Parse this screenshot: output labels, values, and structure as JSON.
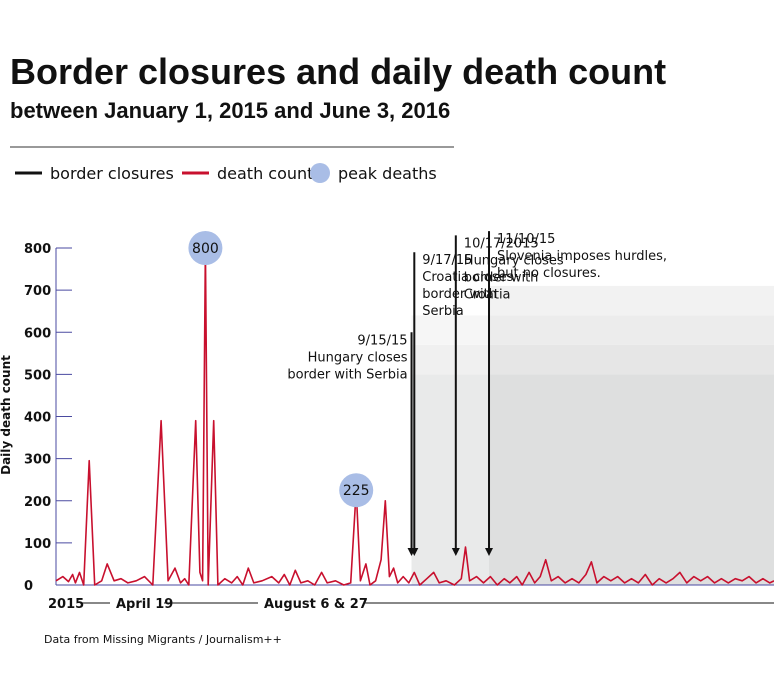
{
  "title": "Border closures and daily death count",
  "subtitle": "between January 1, 2015 and June 3, 2016",
  "legend": [
    {
      "label": "border closures",
      "color": "#111111",
      "kind": "line"
    },
    {
      "label": "death count",
      "color": "#c8102e",
      "kind": "line"
    },
    {
      "label": "peak deaths",
      "color": "#a9bde6",
      "kind": "dot"
    }
  ],
  "source": "Data from Missing Migrants / Journalism++",
  "chart_data": {
    "type": "line",
    "ylabel": "Daily death count",
    "ylim": [
      0,
      800
    ],
    "yticks": [
      0,
      100,
      200,
      300,
      400,
      500,
      600,
      700,
      800
    ],
    "xrange": [
      "2015-01-01",
      "2016-06-03"
    ],
    "xlabels": [
      {
        "text": "2015",
        "date": "2015-01-01"
      },
      {
        "text": "April 19",
        "date": "2015-04-19"
      },
      {
        "text": "August 6 & 27",
        "date": "2015-08-17"
      }
    ],
    "series": [
      {
        "name": "death count",
        "color": "#c8102e",
        "points": [
          [
            "2015-01-01",
            10
          ],
          [
            "2015-01-06",
            20
          ],
          [
            "2015-01-10",
            8
          ],
          [
            "2015-01-13",
            25
          ],
          [
            "2015-01-15",
            5
          ],
          [
            "2015-01-18",
            30
          ],
          [
            "2015-01-21",
            0
          ],
          [
            "2015-01-25",
            295
          ],
          [
            "2015-01-29",
            0
          ],
          [
            "2015-02-03",
            10
          ],
          [
            "2015-02-07",
            50
          ],
          [
            "2015-02-12",
            10
          ],
          [
            "2015-02-17",
            15
          ],
          [
            "2015-02-22",
            5
          ],
          [
            "2015-02-28",
            10
          ],
          [
            "2015-03-06",
            20
          ],
          [
            "2015-03-12",
            0
          ],
          [
            "2015-03-18",
            390
          ],
          [
            "2015-03-23",
            10
          ],
          [
            "2015-03-28",
            40
          ],
          [
            "2015-04-01",
            5
          ],
          [
            "2015-04-04",
            15
          ],
          [
            "2015-04-07",
            0
          ],
          [
            "2015-04-12",
            390
          ],
          [
            "2015-04-15",
            30
          ],
          [
            "2015-04-17",
            10
          ],
          [
            "2015-04-19",
            800
          ],
          [
            "2015-04-21",
            0
          ],
          [
            "2015-04-25",
            390
          ],
          [
            "2015-04-28",
            0
          ],
          [
            "2015-05-03",
            15
          ],
          [
            "2015-05-08",
            5
          ],
          [
            "2015-05-12",
            20
          ],
          [
            "2015-05-16",
            0
          ],
          [
            "2015-05-20",
            40
          ],
          [
            "2015-05-24",
            5
          ],
          [
            "2015-05-30",
            10
          ],
          [
            "2015-06-06",
            20
          ],
          [
            "2015-06-11",
            5
          ],
          [
            "2015-06-15",
            25
          ],
          [
            "2015-06-19",
            0
          ],
          [
            "2015-06-23",
            35
          ],
          [
            "2015-06-27",
            5
          ],
          [
            "2015-07-02",
            10
          ],
          [
            "2015-07-07",
            0
          ],
          [
            "2015-07-12",
            30
          ],
          [
            "2015-07-16",
            5
          ],
          [
            "2015-07-22",
            10
          ],
          [
            "2015-07-28",
            0
          ],
          [
            "2015-08-02",
            5
          ],
          [
            "2015-08-06",
            225
          ],
          [
            "2015-08-09",
            10
          ],
          [
            "2015-08-13",
            50
          ],
          [
            "2015-08-16",
            0
          ],
          [
            "2015-08-20",
            10
          ],
          [
            "2015-08-24",
            60
          ],
          [
            "2015-08-27",
            200
          ],
          [
            "2015-08-30",
            20
          ],
          [
            "2015-09-02",
            40
          ],
          [
            "2015-09-05",
            5
          ],
          [
            "2015-09-09",
            20
          ],
          [
            "2015-09-13",
            5
          ],
          [
            "2015-09-17",
            30
          ],
          [
            "2015-09-21",
            0
          ],
          [
            "2015-09-26",
            15
          ],
          [
            "2015-10-01",
            30
          ],
          [
            "2015-10-05",
            5
          ],
          [
            "2015-10-10",
            10
          ],
          [
            "2015-10-16",
            0
          ],
          [
            "2015-10-21",
            15
          ],
          [
            "2015-10-24",
            90
          ],
          [
            "2015-10-27",
            10
          ],
          [
            "2015-11-01",
            20
          ],
          [
            "2015-11-06",
            5
          ],
          [
            "2015-11-11",
            20
          ],
          [
            "2015-11-16",
            0
          ],
          [
            "2015-11-21",
            15
          ],
          [
            "2015-11-25",
            5
          ],
          [
            "2015-11-30",
            20
          ],
          [
            "2015-12-04",
            0
          ],
          [
            "2015-12-09",
            30
          ],
          [
            "2015-12-13",
            5
          ],
          [
            "2015-12-17",
            20
          ],
          [
            "2015-12-21",
            60
          ],
          [
            "2015-12-25",
            10
          ],
          [
            "2015-12-30",
            20
          ],
          [
            "2016-01-04",
            5
          ],
          [
            "2016-01-09",
            15
          ],
          [
            "2016-01-14",
            5
          ],
          [
            "2016-01-19",
            25
          ],
          [
            "2016-01-23",
            55
          ],
          [
            "2016-01-27",
            5
          ],
          [
            "2016-02-01",
            20
          ],
          [
            "2016-02-06",
            10
          ],
          [
            "2016-02-11",
            20
          ],
          [
            "2016-02-16",
            5
          ],
          [
            "2016-02-21",
            15
          ],
          [
            "2016-02-26",
            5
          ],
          [
            "2016-03-02",
            25
          ],
          [
            "2016-03-07",
            0
          ],
          [
            "2016-03-12",
            15
          ],
          [
            "2016-03-17",
            5
          ],
          [
            "2016-03-22",
            15
          ],
          [
            "2016-03-27",
            30
          ],
          [
            "2016-04-01",
            5
          ],
          [
            "2016-04-06",
            20
          ],
          [
            "2016-04-11",
            10
          ],
          [
            "2016-04-16",
            20
          ],
          [
            "2016-04-21",
            5
          ],
          [
            "2016-04-26",
            15
          ],
          [
            "2016-05-01",
            5
          ],
          [
            "2016-05-06",
            15
          ],
          [
            "2016-05-11",
            10
          ],
          [
            "2016-05-16",
            20
          ],
          [
            "2016-05-21",
            5
          ],
          [
            "2016-05-26",
            15
          ],
          [
            "2016-05-31",
            5
          ],
          [
            "2016-06-03",
            10
          ]
        ]
      }
    ],
    "peaks": [
      {
        "date": "2015-04-19",
        "value": 800,
        "label": "800"
      },
      {
        "date": "2015-08-06",
        "value": 225,
        "label": "225"
      }
    ],
    "border_closures": [
      {
        "date": "2015-09-15",
        "lines": [
          "9/15/15",
          "Hungary closes",
          "border with Serbia"
        ],
        "align": "right",
        "top": 600
      },
      {
        "date": "2015-09-17",
        "lines": [
          "9/17/15",
          "Croatia closes",
          "border with",
          "Serbia"
        ],
        "align": "left",
        "top": 790
      },
      {
        "date": "2015-10-17",
        "lines": [
          "10/17/2015",
          "Hungary closes",
          "border with",
          "Croatia"
        ],
        "align": "left",
        "top": 830
      },
      {
        "date": "2015-11-10",
        "lines": [
          "11/10/15",
          "Slovenia imposes hurdles,",
          "but no closures."
        ],
        "align": "left",
        "top": 840
      }
    ],
    "shaded_bands": [
      {
        "start": "2015-09-15",
        "bands": [
          [
            0,
            500
          ],
          [
            500,
            570
          ],
          [
            570,
            640
          ]
        ]
      },
      {
        "start": "2015-11-10",
        "bands": [
          [
            0,
            500
          ],
          [
            500,
            570
          ],
          [
            570,
            640
          ],
          [
            640,
            710
          ]
        ]
      }
    ]
  }
}
